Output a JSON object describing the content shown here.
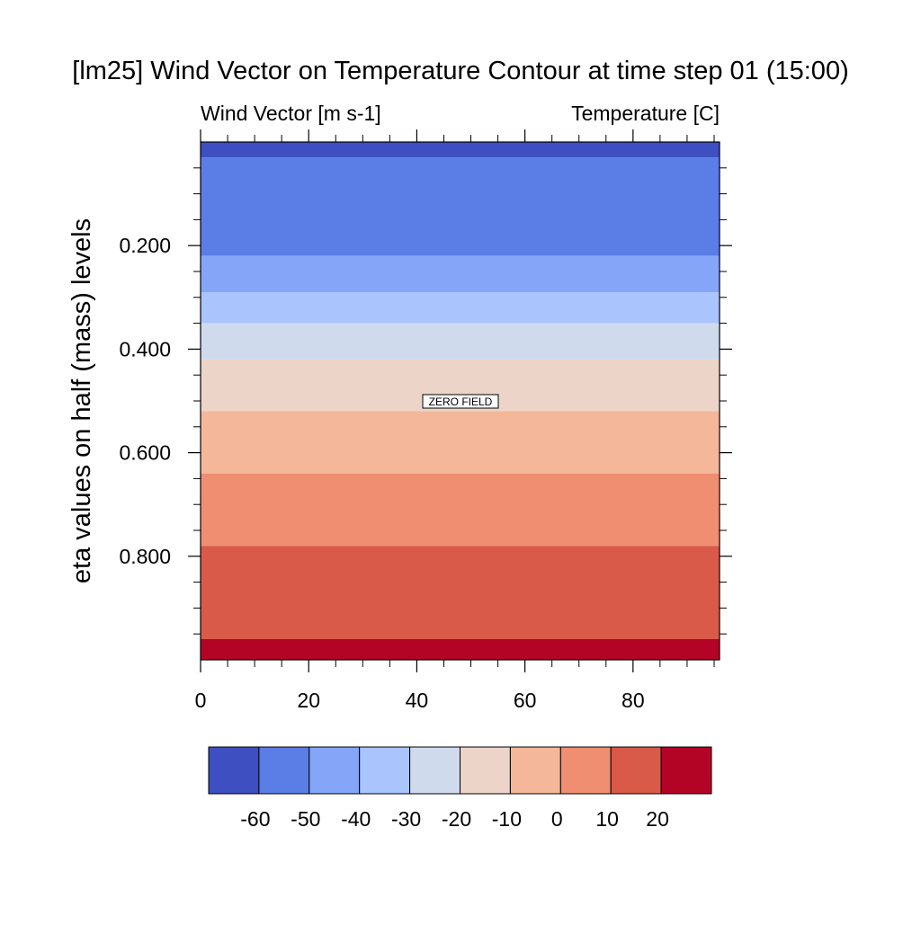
{
  "chart_data": {
    "type": "heatmap",
    "title": "[lm25] Wind Vector on Temperature Contour at time step 01 (15:00)",
    "left_subtitle": "Wind Vector [m s-1]",
    "right_subtitle": "Temperature [C]",
    "ylabel": "eta values on half (mass) levels",
    "xlabel": "",
    "xlim": [
      0,
      96
    ],
    "x_ticks": [
      0,
      20,
      40,
      60,
      80
    ],
    "x_tick_labels": [
      "0",
      "20",
      "40",
      "60",
      "80"
    ],
    "y_ticks": [
      0.2,
      0.4,
      0.6,
      0.8
    ],
    "y_tick_labels": [
      "0.200",
      "0.400",
      "0.600",
      "0.800"
    ],
    "annotation": "ZERO FIELD",
    "bands": [
      {
        "eta_top": 0.0,
        "eta_bottom": 0.03,
        "color": "#3d4fc1"
      },
      {
        "eta_top": 0.03,
        "eta_bottom": 0.22,
        "color": "#5b7de6"
      },
      {
        "eta_top": 0.22,
        "eta_bottom": 0.29,
        "color": "#84a5f8"
      },
      {
        "eta_top": 0.29,
        "eta_bottom": 0.35,
        "color": "#aac4fd"
      },
      {
        "eta_top": 0.35,
        "eta_bottom": 0.42,
        "color": "#cfdaed"
      },
      {
        "eta_top": 0.42,
        "eta_bottom": 0.52,
        "color": "#ecd4c8"
      },
      {
        "eta_top": 0.52,
        "eta_bottom": 0.64,
        "color": "#f5b79a"
      },
      {
        "eta_top": 0.64,
        "eta_bottom": 0.78,
        "color": "#f08e72"
      },
      {
        "eta_top": 0.78,
        "eta_bottom": 0.96,
        "color": "#da5a4a"
      },
      {
        "eta_top": 0.96,
        "eta_bottom": 1.0,
        "color": "#b40426"
      }
    ],
    "colorbar": {
      "colors": [
        "#3d4fc1",
        "#5b7de6",
        "#84a5f8",
        "#aac4fd",
        "#cfdaed",
        "#ecd4c8",
        "#f5b79a",
        "#f08e72",
        "#da5a4a",
        "#b40426"
      ],
      "labels": [
        "-60",
        "-50",
        "-40",
        "-30",
        "-20",
        "-10",
        "0",
        "10",
        "20"
      ]
    }
  }
}
